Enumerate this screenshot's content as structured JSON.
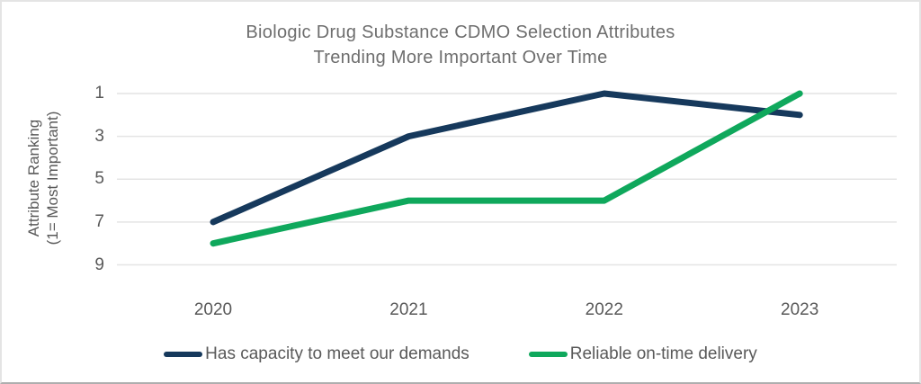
{
  "chart_data": {
    "type": "line",
    "title_lines": [
      "Biologic Drug Substance CDMO Selection Attributes",
      "Trending More Important Over Time"
    ],
    "ylabel_lines": [
      "Attribute Ranking",
      "(1= Most Important)"
    ],
    "xlabel": "",
    "categories": [
      "2020",
      "2021",
      "2022",
      "2023"
    ],
    "y_ticks": [
      1,
      3,
      5,
      7,
      9
    ],
    "ylim": [
      1,
      9
    ],
    "y_axis_inverted": true,
    "grid": "horizontal-only",
    "legend_position": "bottom",
    "series": [
      {
        "name": "Has capacity to meet our demands",
        "color": "#16395c",
        "values": [
          7,
          3,
          1,
          2
        ]
      },
      {
        "name": "Reliable on-time delivery",
        "color": "#0fa85c",
        "values": [
          8,
          6,
          6,
          1
        ]
      }
    ]
  },
  "colors": {
    "grid": "#e4e4e4",
    "axis_text": "#595959",
    "title_text": "#6e6e6e",
    "background": "#ffffff"
  }
}
